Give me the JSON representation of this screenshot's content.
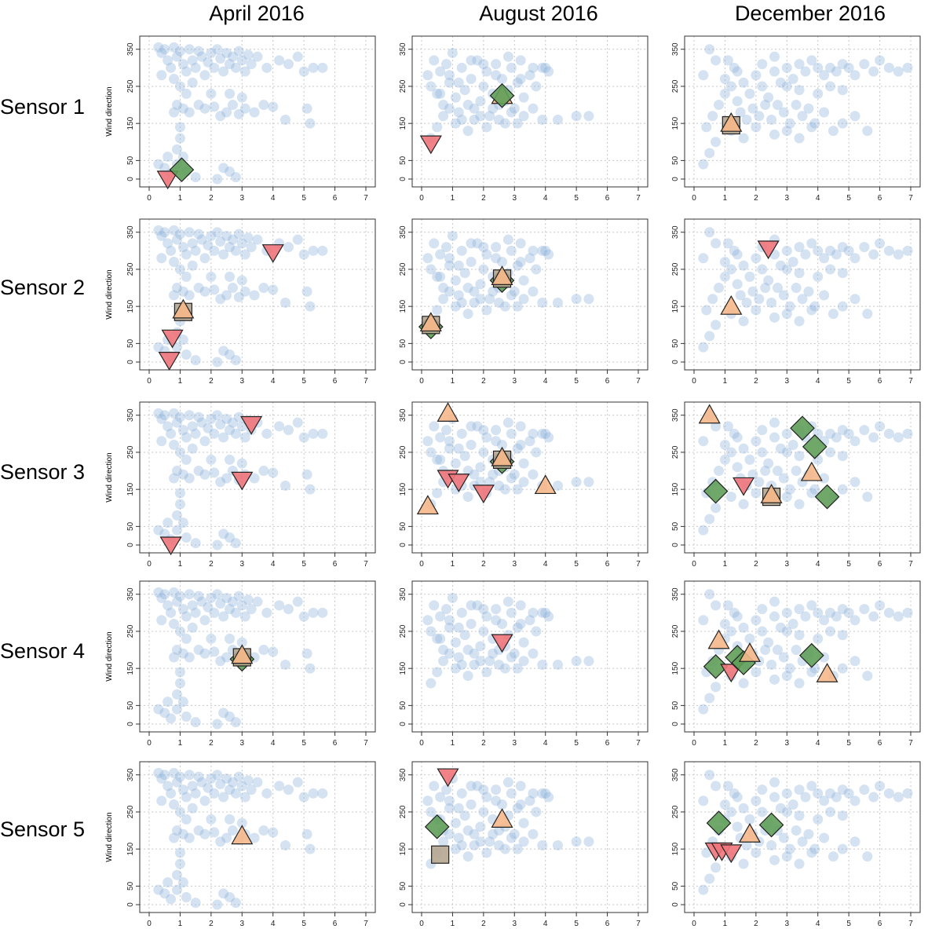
{
  "columns": [
    "April 2016",
    "August 2016",
    "December 2016"
  ],
  "rows": [
    "Sensor 1",
    "Sensor 2",
    "Sensor 3",
    "Sensor 4",
    "Sensor 5"
  ],
  "ylabel": "Wind direction",
  "marker_colors": {
    "down_triangle": "#f0747a",
    "up_triangle": "#f6b88a",
    "square": "#b5a690",
    "diamond": "#5f9e58",
    "background": "#8fb4db"
  },
  "chart_data": {
    "type": "scatter",
    "xlim": [
      0,
      7
    ],
    "ylim": [
      0,
      360
    ],
    "x_ticks": [
      0,
      1,
      2,
      3,
      4,
      5,
      6,
      7
    ],
    "y_ticks": [
      0,
      50,
      150,
      250,
      350
    ],
    "grid": true,
    "background_clouds": {
      "april": [
        [
          0.3,
          355
        ],
        [
          0.4,
          340
        ],
        [
          0.5,
          350
        ],
        [
          0.6,
          320
        ],
        [
          0.7,
          300
        ],
        [
          0.8,
          355
        ],
        [
          0.9,
          330
        ],
        [
          1.0,
          345
        ],
        [
          1.1,
          310
        ],
        [
          1.2,
          290
        ],
        [
          1.3,
          350
        ],
        [
          1.4,
          320
        ],
        [
          1.5,
          300
        ],
        [
          1.6,
          345
        ],
        [
          1.7,
          330
        ],
        [
          1.8,
          280
        ],
        [
          1.9,
          315
        ],
        [
          2.0,
          340
        ],
        [
          2.1,
          300
        ],
        [
          2.2,
          350
        ],
        [
          2.3,
          325
        ],
        [
          2.4,
          290
        ],
        [
          2.5,
          340
        ],
        [
          2.6,
          310
        ],
        [
          2.7,
          330
        ],
        [
          2.8,
          300
        ],
        [
          2.9,
          345
        ],
        [
          3.0,
          320
        ],
        [
          3.1,
          290
        ],
        [
          3.2,
          335
        ],
        [
          3.3,
          310
        ],
        [
          3.5,
          330
        ],
        [
          3.8,
          300
        ],
        [
          4.2,
          320
        ],
        [
          4.5,
          310
        ],
        [
          4.8,
          330
        ],
        [
          5.0,
          290
        ],
        [
          5.3,
          300
        ],
        [
          5.6,
          300
        ],
        [
          0.4,
          280
        ],
        [
          0.8,
          270
        ],
        [
          1.0,
          250
        ],
        [
          1.2,
          230
        ],
        [
          1.4,
          260
        ],
        [
          0.9,
          200
        ],
        [
          1.1,
          190
        ],
        [
          1.3,
          180
        ],
        [
          1.6,
          200
        ],
        [
          2.1,
          195
        ],
        [
          2.3,
          170
        ],
        [
          2.5,
          180
        ],
        [
          2.7,
          200
        ],
        [
          2.9,
          175
        ],
        [
          3.1,
          190
        ],
        [
          3.4,
          180
        ],
        [
          3.7,
          200
        ],
        [
          4.0,
          195
        ],
        [
          4.4,
          160
        ],
        [
          5.1,
          190
        ],
        [
          5.2,
          150
        ],
        [
          1.0,
          140
        ],
        [
          1.0,
          110
        ],
        [
          0.9,
          80
        ],
        [
          1.1,
          60
        ],
        [
          0.6,
          60
        ],
        [
          0.3,
          40
        ],
        [
          0.5,
          30
        ],
        [
          0.7,
          15
        ],
        [
          0.9,
          40
        ],
        [
          1.2,
          20
        ],
        [
          1.5,
          5
        ],
        [
          2.4,
          30
        ],
        [
          2.6,
          20
        ],
        [
          2.8,
          5
        ],
        [
          2.2,
          0
        ],
        [
          0.8,
          180
        ],
        [
          1.8,
          190
        ],
        [
          2.0,
          230
        ],
        [
          2.6,
          230
        ],
        [
          3.0,
          220
        ]
      ],
      "august": [
        [
          0.2,
          280
        ],
        [
          0.3,
          250
        ],
        [
          0.4,
          320
        ],
        [
          0.5,
          230
        ],
        [
          0.6,
          290
        ],
        [
          0.7,
          200
        ],
        [
          0.8,
          310
        ],
        [
          0.9,
          260
        ],
        [
          1.0,
          340
        ],
        [
          1.1,
          220
        ],
        [
          1.2,
          180
        ],
        [
          1.3,
          300
        ],
        [
          1.4,
          240
        ],
        [
          1.5,
          200
        ],
        [
          1.6,
          270
        ],
        [
          1.7,
          160
        ],
        [
          1.8,
          320
        ],
        [
          1.9,
          210
        ],
        [
          2.0,
          250
        ],
        [
          2.1,
          290
        ],
        [
          2.2,
          170
        ],
        [
          2.3,
          230
        ],
        [
          2.4,
          310
        ],
        [
          2.5,
          200
        ],
        [
          2.6,
          270
        ],
        [
          2.7,
          150
        ],
        [
          2.8,
          240
        ],
        [
          2.9,
          300
        ],
        [
          3.0,
          190
        ],
        [
          3.1,
          260
        ],
        [
          3.2,
          320
        ],
        [
          3.3,
          220
        ],
        [
          3.5,
          280
        ],
        [
          3.7,
          250
        ],
        [
          3.9,
          300
        ],
        [
          4.1,
          290
        ],
        [
          4.4,
          160
        ],
        [
          5.0,
          170
        ],
        [
          5.4,
          170
        ],
        [
          0.3,
          110
        ],
        [
          0.5,
          140
        ],
        [
          0.7,
          170
        ],
        [
          0.9,
          190
        ],
        [
          1.1,
          150
        ],
        [
          1.3,
          160
        ],
        [
          1.5,
          130
        ],
        [
          1.7,
          190
        ],
        [
          1.9,
          170
        ],
        [
          2.1,
          140
        ],
        [
          2.3,
          190
        ],
        [
          2.5,
          160
        ],
        [
          2.7,
          210
        ],
        [
          2.9,
          180
        ],
        [
          3.1,
          150
        ],
        [
          3.3,
          170
        ],
        [
          3.6,
          190
        ],
        [
          3.9,
          160
        ],
        [
          0.6,
          230
        ],
        [
          0.9,
          280
        ],
        [
          1.2,
          260
        ],
        [
          1.6,
          320
        ],
        [
          2.0,
          310
        ],
        [
          2.4,
          280
        ],
        [
          2.8,
          330
        ],
        [
          3.2,
          270
        ],
        [
          3.6,
          300
        ],
        [
          4.0,
          300
        ]
      ],
      "december": [
        [
          0.3,
          40
        ],
        [
          0.5,
          70
        ],
        [
          0.7,
          100
        ],
        [
          0.4,
          140
        ],
        [
          0.6,
          170
        ],
        [
          0.8,
          200
        ],
        [
          1.0,
          230
        ],
        [
          1.2,
          250
        ],
        [
          1.4,
          210
        ],
        [
          1.6,
          260
        ],
        [
          1.8,
          230
        ],
        [
          2.0,
          280
        ],
        [
          2.2,
          250
        ],
        [
          2.4,
          220
        ],
        [
          2.6,
          290
        ],
        [
          2.8,
          260
        ],
        [
          3.0,
          300
        ],
        [
          3.2,
          270
        ],
        [
          3.4,
          310
        ],
        [
          3.6,
          290
        ],
        [
          3.8,
          320
        ],
        [
          4.0,
          300
        ],
        [
          4.2,
          280
        ],
        [
          4.4,
          300
        ],
        [
          4.6,
          290
        ],
        [
          4.8,
          310
        ],
        [
          5.0,
          300
        ],
        [
          5.2,
          280
        ],
        [
          5.5,
          310
        ],
        [
          5.8,
          290
        ],
        [
          6.0,
          320
        ],
        [
          6.3,
          300
        ],
        [
          6.6,
          290
        ],
        [
          6.9,
          300
        ],
        [
          0.3,
          280
        ],
        [
          0.5,
          350
        ],
        [
          0.7,
          320
        ],
        [
          1.1,
          320
        ],
        [
          1.3,
          300
        ],
        [
          1.5,
          180
        ],
        [
          1.7,
          160
        ],
        [
          1.9,
          190
        ],
        [
          2.1,
          170
        ],
        [
          2.3,
          200
        ],
        [
          2.5,
          160
        ],
        [
          2.7,
          200
        ],
        [
          2.9,
          180
        ],
        [
          3.1,
          150
        ],
        [
          3.3,
          200
        ],
        [
          3.5,
          170
        ],
        [
          3.7,
          190
        ],
        [
          3.9,
          150
        ],
        [
          4.2,
          180
        ],
        [
          4.5,
          130
        ],
        [
          4.8,
          150
        ],
        [
          5.2,
          170
        ],
        [
          5.6,
          130
        ],
        [
          1.2,
          130
        ],
        [
          1.6,
          110
        ],
        [
          2.0,
          140
        ],
        [
          2.6,
          120
        ],
        [
          3.0,
          130
        ],
        [
          3.4,
          110
        ],
        [
          3.8,
          140
        ],
        [
          1.0,
          270
        ],
        [
          1.4,
          290
        ],
        [
          2.2,
          310
        ],
        [
          2.6,
          330
        ],
        [
          3.0,
          250
        ],
        [
          3.4,
          240
        ],
        [
          4.0,
          230
        ],
        [
          4.4,
          250
        ],
        [
          4.8,
          240
        ]
      ]
    },
    "panels": [
      {
        "row": 0,
        "col": 0,
        "markers": [
          {
            "shape": "down_triangle",
            "x": 0.6,
            "y": 0
          },
          {
            "shape": "diamond",
            "x": 1.05,
            "y": 25
          }
        ]
      },
      {
        "row": 0,
        "col": 1,
        "markers": [
          {
            "shape": "down_triangle",
            "x": 0.3,
            "y": 95
          },
          {
            "shape": "up_triangle",
            "x": 2.6,
            "y": 225
          },
          {
            "shape": "diamond",
            "x": 2.6,
            "y": 225
          }
        ]
      },
      {
        "row": 0,
        "col": 2,
        "markers": [
          {
            "shape": "square",
            "x": 1.2,
            "y": 145
          },
          {
            "shape": "up_triangle",
            "x": 1.2,
            "y": 150
          }
        ]
      },
      {
        "row": 1,
        "col": 0,
        "markers": [
          {
            "shape": "down_triangle",
            "x": 4.0,
            "y": 295
          },
          {
            "shape": "square",
            "x": 1.1,
            "y": 135
          },
          {
            "shape": "up_triangle",
            "x": 1.1,
            "y": 140
          },
          {
            "shape": "down_triangle",
            "x": 0.75,
            "y": 65
          },
          {
            "shape": "down_triangle",
            "x": 0.65,
            "y": 5
          }
        ]
      },
      {
        "row": 1,
        "col": 1,
        "markers": [
          {
            "shape": "diamond",
            "x": 2.6,
            "y": 220
          },
          {
            "shape": "square",
            "x": 2.6,
            "y": 225
          },
          {
            "shape": "up_triangle",
            "x": 2.6,
            "y": 230
          },
          {
            "shape": "diamond",
            "x": 0.3,
            "y": 95
          },
          {
            "shape": "square",
            "x": 0.3,
            "y": 100
          },
          {
            "shape": "up_triangle",
            "x": 0.3,
            "y": 105
          }
        ]
      },
      {
        "row": 1,
        "col": 2,
        "markers": [
          {
            "shape": "down_triangle",
            "x": 2.4,
            "y": 305
          },
          {
            "shape": "up_triangle",
            "x": 1.2,
            "y": 150
          }
        ]
      },
      {
        "row": 2,
        "col": 0,
        "markers": [
          {
            "shape": "down_triangle",
            "x": 3.3,
            "y": 325
          },
          {
            "shape": "down_triangle",
            "x": 3.0,
            "y": 175
          },
          {
            "shape": "down_triangle",
            "x": 0.7,
            "y": 0
          }
        ]
      },
      {
        "row": 2,
        "col": 1,
        "markers": [
          {
            "shape": "up_triangle",
            "x": 0.85,
            "y": 355
          },
          {
            "shape": "diamond",
            "x": 2.6,
            "y": 225
          },
          {
            "shape": "square",
            "x": 2.6,
            "y": 230
          },
          {
            "shape": "up_triangle",
            "x": 2.6,
            "y": 235
          },
          {
            "shape": "down_triangle",
            "x": 0.85,
            "y": 180
          },
          {
            "shape": "down_triangle",
            "x": 1.2,
            "y": 170
          },
          {
            "shape": "down_triangle",
            "x": 2.0,
            "y": 140
          },
          {
            "shape": "up_triangle",
            "x": 4.0,
            "y": 160
          },
          {
            "shape": "up_triangle",
            "x": 0.2,
            "y": 105
          }
        ]
      },
      {
        "row": 2,
        "col": 2,
        "markers": [
          {
            "shape": "up_triangle",
            "x": 0.5,
            "y": 350
          },
          {
            "shape": "diamond",
            "x": 3.5,
            "y": 315
          },
          {
            "shape": "diamond",
            "x": 3.9,
            "y": 265
          },
          {
            "shape": "up_triangle",
            "x": 3.8,
            "y": 195
          },
          {
            "shape": "down_triangle",
            "x": 1.6,
            "y": 160
          },
          {
            "shape": "diamond",
            "x": 0.7,
            "y": 145
          },
          {
            "shape": "square",
            "x": 2.5,
            "y": 130
          },
          {
            "shape": "up_triangle",
            "x": 2.5,
            "y": 135
          },
          {
            "shape": "diamond",
            "x": 4.3,
            "y": 130
          }
        ]
      },
      {
        "row": 3,
        "col": 0,
        "markers": [
          {
            "shape": "diamond",
            "x": 3.0,
            "y": 175
          },
          {
            "shape": "square",
            "x": 3.0,
            "y": 180
          },
          {
            "shape": "up_triangle",
            "x": 3.0,
            "y": 185
          }
        ]
      },
      {
        "row": 3,
        "col": 1,
        "markers": [
          {
            "shape": "down_triangle",
            "x": 2.6,
            "y": 220
          }
        ]
      },
      {
        "row": 3,
        "col": 2,
        "markers": [
          {
            "shape": "up_triangle",
            "x": 0.8,
            "y": 225
          },
          {
            "shape": "diamond",
            "x": 0.7,
            "y": 155
          },
          {
            "shape": "down_triangle",
            "x": 1.2,
            "y": 140
          },
          {
            "shape": "diamond",
            "x": 1.4,
            "y": 180
          },
          {
            "shape": "diamond",
            "x": 1.6,
            "y": 165
          },
          {
            "shape": "up_triangle",
            "x": 1.8,
            "y": 190
          },
          {
            "shape": "diamond",
            "x": 3.8,
            "y": 185
          },
          {
            "shape": "up_triangle",
            "x": 4.3,
            "y": 135
          }
        ]
      },
      {
        "row": 4,
        "col": 0,
        "markers": [
          {
            "shape": "up_triangle",
            "x": 3.0,
            "y": 185
          }
        ]
      },
      {
        "row": 4,
        "col": 1,
        "markers": [
          {
            "shape": "down_triangle",
            "x": 0.85,
            "y": 345
          },
          {
            "shape": "diamond",
            "x": 0.5,
            "y": 210
          },
          {
            "shape": "up_triangle",
            "x": 2.6,
            "y": 230
          },
          {
            "shape": "square",
            "x": 0.6,
            "y": 135
          }
        ]
      },
      {
        "row": 4,
        "col": 2,
        "markers": [
          {
            "shape": "diamond",
            "x": 0.8,
            "y": 220
          },
          {
            "shape": "diamond",
            "x": 2.5,
            "y": 215
          },
          {
            "shape": "up_triangle",
            "x": 1.8,
            "y": 190
          },
          {
            "shape": "down_triangle",
            "x": 0.7,
            "y": 145
          },
          {
            "shape": "down_triangle",
            "x": 0.9,
            "y": 145
          },
          {
            "shape": "down_triangle",
            "x": 1.2,
            "y": 140
          }
        ]
      }
    ]
  }
}
